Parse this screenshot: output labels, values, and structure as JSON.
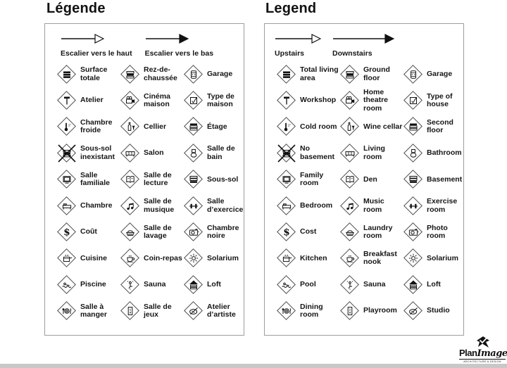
{
  "colors": {
    "ink": "#161616",
    "panel_border": "#9e9e9e",
    "diamond_border": "#4a4a4a",
    "bottom_bar": "#c8c8c8"
  },
  "panels": [
    {
      "id": "fr",
      "title": "Légende",
      "arrows": [
        {
          "icon": "arrow-up-open-icon",
          "head": "open",
          "label": "Escalier vers le haut"
        },
        {
          "icon": "arrow-down-solid-icon",
          "head": "solid",
          "label": "Escalier vers le bas"
        }
      ],
      "items": [
        {
          "icon": "floors-total-icon",
          "label": "Surface totale"
        },
        {
          "icon": "floors-ground-icon",
          "label": "Rez-de-chaussée"
        },
        {
          "icon": "car-icon",
          "label": "Garage"
        },
        {
          "icon": "hammer-icon",
          "label": "Atelier"
        },
        {
          "icon": "projector-icon",
          "label": "Cinéma maison"
        },
        {
          "icon": "checkbox-icon",
          "label": "Type de maison"
        },
        {
          "icon": "thermometer-icon",
          "label": "Chambre froide"
        },
        {
          "icon": "wine-icon",
          "label": "Cellier"
        },
        {
          "icon": "floors-second-icon",
          "label": "Étage"
        },
        {
          "icon": "floors-ground-icon",
          "label": "Sous-sol inexistant",
          "cross": true
        },
        {
          "icon": "sofa-icon",
          "label": "Salon"
        },
        {
          "icon": "toilet-icon",
          "label": "Salle de bain"
        },
        {
          "icon": "tv-icon",
          "label": "Salle familiale"
        },
        {
          "icon": "book-icon",
          "label": "Salle de lecture"
        },
        {
          "icon": "floors-basement-icon",
          "label": "Sous-sol"
        },
        {
          "icon": "bed-icon",
          "label": "Chambre"
        },
        {
          "icon": "music-icon",
          "label": "Salle de musique"
        },
        {
          "icon": "dumbbell-icon",
          "label": "Salle d’exercice"
        },
        {
          "icon": "dollar-icon",
          "label": "Coût"
        },
        {
          "icon": "washer-icon",
          "label": "Salle de lavage"
        },
        {
          "icon": "camera-icon",
          "label": "Chambre noire"
        },
        {
          "icon": "pot-icon",
          "label": "Cuisine"
        },
        {
          "icon": "cup-icon",
          "label": "Coin-repas"
        },
        {
          "icon": "sun-icon",
          "label": "Solarium"
        },
        {
          "icon": "swimmer-icon",
          "label": "Piscine"
        },
        {
          "icon": "sauna-icon",
          "label": "Sauna"
        },
        {
          "icon": "floors-loft-icon",
          "label": "Loft"
        },
        {
          "icon": "plate-icon",
          "label": "Salle à manger"
        },
        {
          "icon": "play-icon",
          "label": "Salle de jeux"
        },
        {
          "icon": "palette-icon",
          "label": "Atelier d’artiste"
        }
      ]
    },
    {
      "id": "en",
      "title": "Legend",
      "arrows": [
        {
          "icon": "arrow-up-open-icon",
          "head": "open",
          "label": "Upstairs"
        },
        {
          "icon": "arrow-down-solid-icon",
          "head": "solid",
          "label": "Downstairs"
        }
      ],
      "items": [
        {
          "icon": "floors-total-icon",
          "label": "Total living area"
        },
        {
          "icon": "floors-ground-icon",
          "label": "Ground floor"
        },
        {
          "icon": "car-icon",
          "label": "Garage"
        },
        {
          "icon": "hammer-icon",
          "label": "Workshop"
        },
        {
          "icon": "projector-icon",
          "label": "Home theatre room"
        },
        {
          "icon": "checkbox-icon",
          "label": "Type of house"
        },
        {
          "icon": "thermometer-icon",
          "label": "Cold room"
        },
        {
          "icon": "wine-icon",
          "label": "Wine cellar"
        },
        {
          "icon": "floors-second-icon",
          "label": "Second floor"
        },
        {
          "icon": "floors-ground-icon",
          "label": "No basement",
          "cross": true
        },
        {
          "icon": "sofa-icon",
          "label": "Living room"
        },
        {
          "icon": "toilet-icon",
          "label": "Bathroom"
        },
        {
          "icon": "tv-icon",
          "label": "Family room"
        },
        {
          "icon": "book-icon",
          "label": "Den"
        },
        {
          "icon": "floors-basement-icon",
          "label": "Basement"
        },
        {
          "icon": "bed-icon",
          "label": "Bedroom"
        },
        {
          "icon": "music-icon",
          "label": "Music room"
        },
        {
          "icon": "dumbbell-icon",
          "label": "Exercise room"
        },
        {
          "icon": "dollar-icon",
          "label": "Cost"
        },
        {
          "icon": "washer-icon",
          "label": "Laundry room"
        },
        {
          "icon": "camera-icon",
          "label": "Photo room"
        },
        {
          "icon": "pot-icon",
          "label": "Kitchen"
        },
        {
          "icon": "cup-icon",
          "label": "Breakfast nook"
        },
        {
          "icon": "sun-icon",
          "label": "Solarium"
        },
        {
          "icon": "swimmer-icon",
          "label": "Pool"
        },
        {
          "icon": "sauna-icon",
          "label": "Sauna"
        },
        {
          "icon": "floors-loft-icon",
          "label": "Loft"
        },
        {
          "icon": "plate-icon",
          "label": "Dining room"
        },
        {
          "icon": "play-icon",
          "label": "Playroom"
        },
        {
          "icon": "palette-icon",
          "label": "Studio"
        }
      ]
    }
  ],
  "logo": {
    "name_bold": "Plan",
    "name_italic": "Image",
    "tagline": "ARCHITECTURE & DESIGN"
  }
}
